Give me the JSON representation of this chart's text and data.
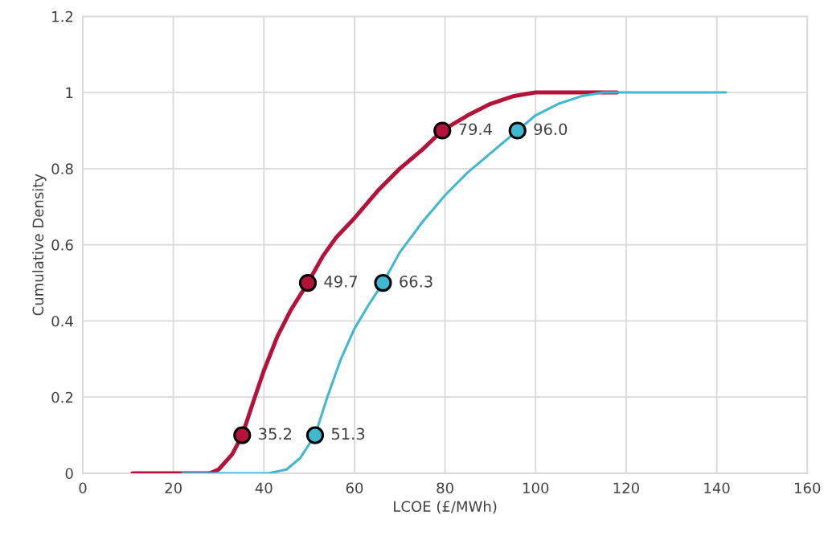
{
  "chart_data": {
    "type": "line",
    "xlabel": "LCOE (£/MWh)",
    "ylabel": "Cumulative Density",
    "xlim": [
      0,
      160
    ],
    "xticks": [
      0,
      20,
      40,
      60,
      80,
      100,
      120,
      140,
      160
    ],
    "ylim": [
      0,
      1.2
    ],
    "yticks": [
      0,
      0.2,
      0.4,
      0.6,
      0.8,
      1,
      1.2
    ],
    "grid": true,
    "marker": "none",
    "series": [
      {
        "color": "#b5123a",
        "x": [
          11,
          28,
          30,
          33,
          35.2,
          38,
          40,
          43,
          46,
          49.7,
          53,
          56,
          60,
          65,
          70,
          75,
          79.4,
          85,
          90,
          95,
          100,
          118
        ],
        "values": [
          0,
          0,
          0.01,
          0.05,
          0.1,
          0.2,
          0.27,
          0.36,
          0.43,
          0.5,
          0.57,
          0.62,
          0.67,
          0.74,
          0.8,
          0.85,
          0.9,
          0.94,
          0.97,
          0.99,
          1,
          1
        ]
      },
      {
        "color": "#40b8d0",
        "x": [
          22,
          41,
          45,
          48,
          51.3,
          54,
          57,
          60,
          63,
          66.3,
          70,
          75,
          80,
          85,
          90,
          96,
          100,
          105,
          110,
          115,
          142
        ],
        "values": [
          0,
          0,
          0.01,
          0.04,
          0.1,
          0.2,
          0.3,
          0.38,
          0.44,
          0.5,
          0.58,
          0.66,
          0.73,
          0.79,
          0.84,
          0.9,
          0.94,
          0.97,
          0.99,
          1,
          1
        ]
      },
      {
        "type": "scatter",
        "marker": "circle",
        "color": "#b5123a",
        "x": [
          35.2,
          49.7,
          79.4
        ],
        "values": [
          0.1,
          0.5,
          0.9
        ]
      },
      {
        "type": "scatter",
        "marker": "circle",
        "color": "#40b8d0",
        "x": [
          51.3,
          66.3,
          96.0
        ],
        "values": [
          0.1,
          0.5,
          0.9
        ]
      }
    ],
    "annotations": [
      {
        "text": "35.2",
        "x": 35.2,
        "y": 0.1
      },
      {
        "text": "49.7",
        "x": 49.7,
        "y": 0.5
      },
      {
        "text": "79.4",
        "x": 79.4,
        "y": 0.9
      },
      {
        "text": "51.3",
        "x": 51.3,
        "y": 0.1
      },
      {
        "text": "66.3",
        "x": 66.3,
        "y": 0.5
      },
      {
        "text": "96.0",
        "x": 96.0,
        "y": 0.9
      }
    ]
  }
}
